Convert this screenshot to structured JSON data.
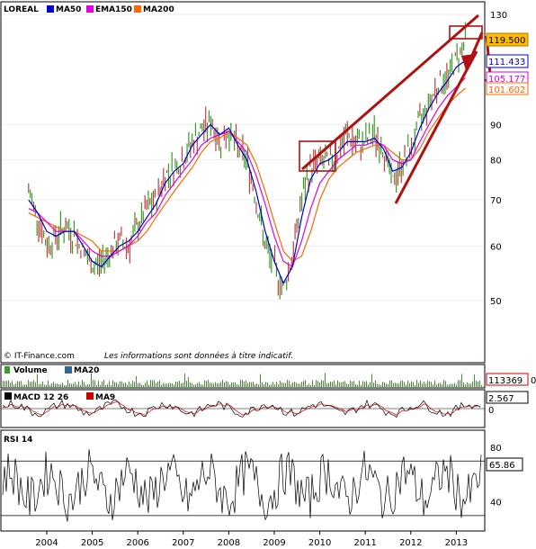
{
  "chart_data": [
    {
      "type": "line",
      "title": "LOREAL",
      "legend": [
        "MA50",
        "EMA150",
        "MA200"
      ],
      "legend_placement": "top-left",
      "colors": {
        "price": "#3a9a2a",
        "ma50": "#0000cc",
        "ema150": "#e000e0",
        "ma200": "#ff6600",
        "trend": "#b01010"
      },
      "y_scale": "log",
      "ylim": [
        44,
        130
      ],
      "y_ticks": [
        50,
        60,
        70,
        80,
        90,
        130
      ],
      "x": [
        2003.6,
        2003.8,
        2004.0,
        2004.2,
        2004.4,
        2004.6,
        2004.8,
        2005.0,
        2005.2,
        2005.4,
        2005.6,
        2005.8,
        2006.0,
        2006.2,
        2006.4,
        2006.6,
        2006.8,
        2007.0,
        2007.2,
        2007.4,
        2007.6,
        2007.8,
        2008.0,
        2008.2,
        2008.4,
        2008.6,
        2008.8,
        2009.0,
        2009.2,
        2009.4,
        2009.6,
        2009.8,
        2010.0,
        2010.2,
        2010.4,
        2010.6,
        2010.8,
        2011.0,
        2011.2,
        2011.4,
        2011.6,
        2011.8,
        2012.0,
        2012.2,
        2012.4,
        2012.6,
        2012.8,
        2013.0,
        2013.2
      ],
      "series": [
        {
          "name": "price",
          "values": [
            72,
            66,
            60,
            62,
            64,
            62,
            59,
            56,
            57,
            59,
            61,
            60,
            64,
            68,
            70,
            76,
            78,
            80,
            85,
            88,
            91,
            85,
            88,
            83,
            80,
            70,
            60,
            56,
            52,
            58,
            70,
            78,
            80,
            79,
            82,
            87,
            84,
            85,
            87,
            83,
            74,
            79,
            83,
            91,
            97,
            103,
            105,
            112,
            119.5
          ]
        },
        {
          "name": "MA50",
          "values": [
            70,
            67,
            63,
            62,
            63,
            63,
            60,
            57,
            56,
            58,
            60,
            61,
            63,
            66,
            69,
            74,
            77,
            79,
            84,
            87,
            90,
            87,
            89,
            84,
            80,
            72,
            63,
            57,
            53,
            56,
            66,
            75,
            79,
            80,
            82,
            85,
            85,
            85,
            86,
            83,
            77,
            78,
            82,
            89,
            95,
            100,
            104,
            109,
            111.433
          ]
        },
        {
          "name": "EMA150",
          "values": [
            68,
            67,
            65,
            63,
            63,
            63,
            61,
            59,
            58,
            58,
            59,
            60,
            62,
            65,
            67,
            71,
            74,
            77,
            80,
            84,
            86,
            87,
            88,
            85,
            82,
            76,
            69,
            62,
            57,
            56,
            61,
            68,
            74,
            77,
            80,
            82,
            84,
            84,
            85,
            84,
            80,
            79,
            80,
            85,
            90,
            95,
            99,
            102,
            105.177
          ]
        },
        {
          "name": "MA200",
          "values": [
            67,
            66,
            65,
            64,
            63,
            63,
            62,
            61,
            59,
            59,
            59,
            60,
            61,
            63,
            66,
            69,
            72,
            75,
            78,
            82,
            85,
            86,
            88,
            86,
            84,
            79,
            72,
            65,
            59,
            57,
            58,
            63,
            70,
            75,
            78,
            80,
            82,
            83,
            84,
            84,
            82,
            80,
            80,
            83,
            88,
            92,
            96,
            99,
            101.602
          ]
        }
      ],
      "last_values": {
        "price": "119.500",
        "ma50": "111.433",
        "ema150": "105.177",
        "ma200": "101.602"
      },
      "annotation": "Les informations sont données à titre indicatif.",
      "source": "© IT-Finance.com"
    },
    {
      "type": "bar",
      "title": "Volume",
      "legend": [
        "MA20"
      ],
      "last_value": "113369",
      "last_value_extra": "0"
    },
    {
      "type": "line",
      "title": "MACD 12 26",
      "legend": [
        "MA9"
      ],
      "last_value": "2.567",
      "y_ticks": [
        0
      ]
    },
    {
      "type": "line",
      "title": "RSI 14",
      "ylim": [
        20,
        90
      ],
      "y_ticks": [
        40,
        80
      ],
      "levels": [
        70,
        30
      ],
      "last_value": "65.86",
      "x_ticks": [
        "2004",
        "2005",
        "2006",
        "2007",
        "2008",
        "2009",
        "2010",
        "2011",
        "2012",
        "2013"
      ]
    }
  ]
}
